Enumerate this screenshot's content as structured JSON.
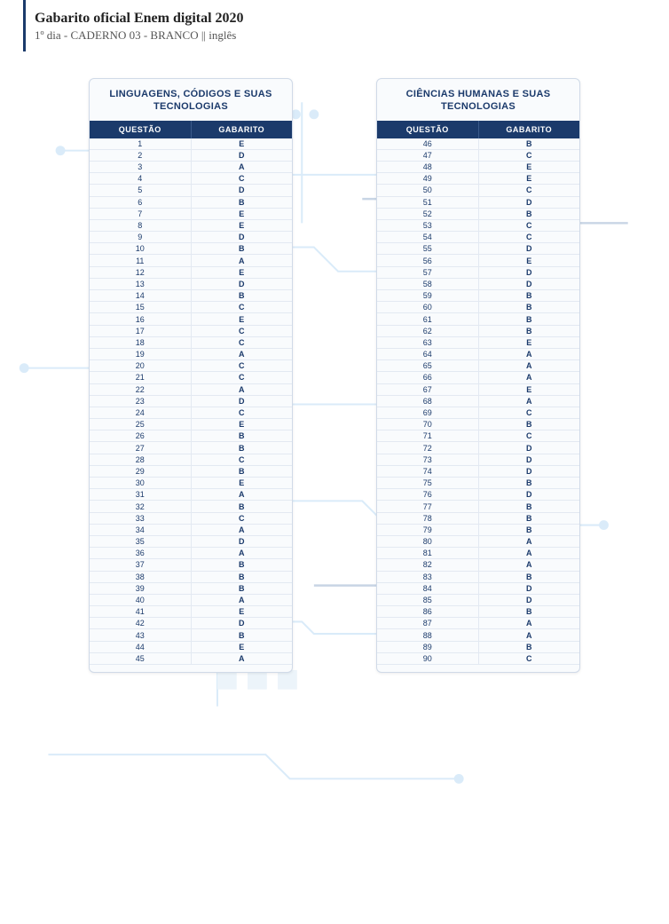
{
  "header": {
    "title": "Gabarito oficial Enem digital 2020",
    "subtitle": "1º dia - CADERNO 03 - BRANCO || inglês"
  },
  "columns": {
    "question": "QUESTÃO",
    "answer": "GABARITO"
  },
  "colors": {
    "primary": "#1b3a6b",
    "panel_bg": "#f9fbfd",
    "panel_border": "#d0dae8",
    "row_border": "#e3e9f2",
    "circuit_blue": "#6eb4e8",
    "circuit_dark": "#2a5a9b"
  },
  "panels": [
    {
      "title": "LINGUAGENS, CÓDIGOS E SUAS TECNOLOGIAS",
      "rows": [
        {
          "q": "1",
          "a": "E"
        },
        {
          "q": "2",
          "a": "D"
        },
        {
          "q": "3",
          "a": "A"
        },
        {
          "q": "4",
          "a": "C"
        },
        {
          "q": "5",
          "a": "D"
        },
        {
          "q": "6",
          "a": "B"
        },
        {
          "q": "7",
          "a": "E"
        },
        {
          "q": "8",
          "a": "E"
        },
        {
          "q": "9",
          "a": "D"
        },
        {
          "q": "10",
          "a": "B"
        },
        {
          "q": "11",
          "a": "A"
        },
        {
          "q": "12",
          "a": "E"
        },
        {
          "q": "13",
          "a": "D"
        },
        {
          "q": "14",
          "a": "B"
        },
        {
          "q": "15",
          "a": "C"
        },
        {
          "q": "16",
          "a": "E"
        },
        {
          "q": "17",
          "a": "C"
        },
        {
          "q": "18",
          "a": "C"
        },
        {
          "q": "19",
          "a": "A"
        },
        {
          "q": "20",
          "a": "C"
        },
        {
          "q": "21",
          "a": "C"
        },
        {
          "q": "22",
          "a": "A"
        },
        {
          "q": "23",
          "a": "D"
        },
        {
          "q": "24",
          "a": "C"
        },
        {
          "q": "25",
          "a": "E"
        },
        {
          "q": "26",
          "a": "B"
        },
        {
          "q": "27",
          "a": "B"
        },
        {
          "q": "28",
          "a": "C"
        },
        {
          "q": "29",
          "a": "B"
        },
        {
          "q": "30",
          "a": "E"
        },
        {
          "q": "31",
          "a": "A"
        },
        {
          "q": "32",
          "a": "B"
        },
        {
          "q": "33",
          "a": "C"
        },
        {
          "q": "34",
          "a": "A"
        },
        {
          "q": "35",
          "a": "D"
        },
        {
          "q": "36",
          "a": "A"
        },
        {
          "q": "37",
          "a": "B"
        },
        {
          "q": "38",
          "a": "B"
        },
        {
          "q": "39",
          "a": "B"
        },
        {
          "q": "40",
          "a": "A"
        },
        {
          "q": "41",
          "a": "E"
        },
        {
          "q": "42",
          "a": "D"
        },
        {
          "q": "43",
          "a": "B"
        },
        {
          "q": "44",
          "a": "E"
        },
        {
          "q": "45",
          "a": "A"
        }
      ]
    },
    {
      "title": "CIÊNCIAS HUMANAS E SUAS TECNOLOGIAS",
      "rows": [
        {
          "q": "46",
          "a": "B"
        },
        {
          "q": "47",
          "a": "C"
        },
        {
          "q": "48",
          "a": "E"
        },
        {
          "q": "49",
          "a": "E"
        },
        {
          "q": "50",
          "a": "C"
        },
        {
          "q": "51",
          "a": "D"
        },
        {
          "q": "52",
          "a": "B"
        },
        {
          "q": "53",
          "a": "C"
        },
        {
          "q": "54",
          "a": "C"
        },
        {
          "q": "55",
          "a": "D"
        },
        {
          "q": "56",
          "a": "E"
        },
        {
          "q": "57",
          "a": "D"
        },
        {
          "q": "58",
          "a": "D"
        },
        {
          "q": "59",
          "a": "B"
        },
        {
          "q": "60",
          "a": "B"
        },
        {
          "q": "61",
          "a": "B"
        },
        {
          "q": "62",
          "a": "B"
        },
        {
          "q": "63",
          "a": "E"
        },
        {
          "q": "64",
          "a": "A"
        },
        {
          "q": "65",
          "a": "A"
        },
        {
          "q": "66",
          "a": "A"
        },
        {
          "q": "67",
          "a": "E"
        },
        {
          "q": "68",
          "a": "A"
        },
        {
          "q": "69",
          "a": "C"
        },
        {
          "q": "70",
          "a": "B"
        },
        {
          "q": "71",
          "a": "C"
        },
        {
          "q": "72",
          "a": "D"
        },
        {
          "q": "73",
          "a": "D"
        },
        {
          "q": "74",
          "a": "D"
        },
        {
          "q": "75",
          "a": "B"
        },
        {
          "q": "76",
          "a": "D"
        },
        {
          "q": "77",
          "a": "B"
        },
        {
          "q": "78",
          "a": "B"
        },
        {
          "q": "79",
          "a": "B"
        },
        {
          "q": "80",
          "a": "A"
        },
        {
          "q": "81",
          "a": "A"
        },
        {
          "q": "82",
          "a": "A"
        },
        {
          "q": "83",
          "a": "B"
        },
        {
          "q": "84",
          "a": "D"
        },
        {
          "q": "85",
          "a": "D"
        },
        {
          "q": "86",
          "a": "B"
        },
        {
          "q": "87",
          "a": "A"
        },
        {
          "q": "88",
          "a": "A"
        },
        {
          "q": "89",
          "a": "B"
        },
        {
          "q": "90",
          "a": "C"
        }
      ]
    }
  ]
}
